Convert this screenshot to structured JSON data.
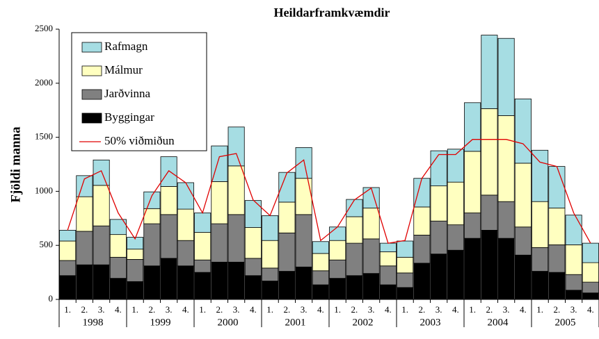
{
  "chart_data": {
    "type": "bar",
    "stacked": true,
    "title": "Heildarframkvæmdir",
    "y_label": "Fjöldi manna",
    "categories": [
      "1.",
      "2.",
      "3.",
      "4.",
      "1.",
      "2.",
      "3.",
      "4.",
      "1.",
      "2.",
      "3.",
      "4.",
      "1.",
      "2.",
      "3.",
      "4.",
      "1.",
      "2.",
      "3.",
      "4.",
      "1.",
      "2.",
      "3.",
      "4.",
      "1.",
      "2.",
      "3.",
      "4.",
      "1.",
      "2.",
      "3.",
      "4."
    ],
    "groups": [
      "1998",
      "1999",
      "2000",
      "2001",
      "2002",
      "2003",
      "2004",
      "2005"
    ],
    "series": [
      {
        "name": "Byggingar",
        "color": "#000000",
        "values": [
          220,
          320,
          320,
          195,
          165,
          310,
          380,
          310,
          250,
          345,
          345,
          220,
          170,
          260,
          300,
          135,
          195,
          220,
          240,
          135,
          110,
          335,
          420,
          455,
          565,
          640,
          565,
          410,
          260,
          250,
          85,
          60
        ]
      },
      {
        "name": "Jarðvinna",
        "color": "#808080",
        "values": [
          140,
          310,
          360,
          195,
          205,
          390,
          405,
          235,
          115,
          355,
          440,
          160,
          120,
          355,
          485,
          130,
          170,
          300,
          320,
          175,
          135,
          260,
          305,
          235,
          235,
          325,
          340,
          260,
          220,
          255,
          145,
          100
        ]
      },
      {
        "name": "Málmur",
        "color": "#ffffc0",
        "values": [
          180,
          320,
          375,
          210,
          95,
          140,
          260,
          290,
          255,
          390,
          450,
          285,
          255,
          285,
          335,
          160,
          180,
          245,
          285,
          130,
          145,
          260,
          325,
          395,
          570,
          800,
          795,
          590,
          425,
          340,
          275,
          180
        ]
      },
      {
        "name": "Rafmagn",
        "color": "#a6dde3",
        "values": [
          100,
          195,
          235,
          140,
          110,
          155,
          275,
          245,
          180,
          330,
          360,
          250,
          230,
          275,
          285,
          110,
          125,
          160,
          190,
          80,
          150,
          265,
          325,
          305,
          450,
          680,
          715,
          595,
          475,
          385,
          275,
          180
        ]
      },
      {
        "name": "50% viðmiðun",
        "type": "line",
        "color": "#e00000",
        "values": [
          640,
          1115,
          1190,
          800,
          560,
          960,
          1190,
          1080,
          800,
          1320,
          1350,
          920,
          775,
          1170,
          1290,
          545,
          670,
          920,
          1030,
          520,
          545,
          1120,
          1340,
          1340,
          1480,
          1480,
          1480,
          1440,
          1270,
          1230,
          800,
          520
        ]
      }
    ],
    "legend_order": [
      3,
      2,
      1,
      0,
      4
    ],
    "ylim": [
      0,
      2500
    ],
    "yticks": [
      0,
      500,
      1000,
      1500,
      2000,
      2500
    ],
    "grid": false,
    "legend": "upper left"
  }
}
